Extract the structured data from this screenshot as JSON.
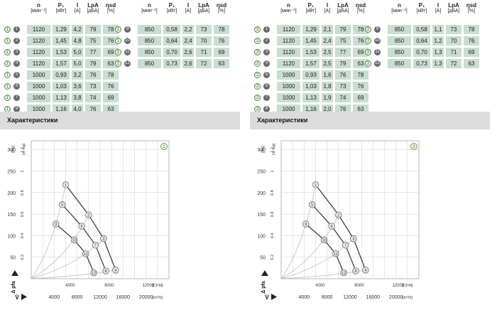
{
  "headers": [
    {
      "top": "n",
      "unit": "[мин⁻¹]"
    },
    {
      "top": "P₁",
      "unit": "[кВт]"
    },
    {
      "top": "I",
      "unit": "[A]"
    },
    {
      "top": "LpA",
      "unit": "[дБА]"
    },
    {
      "top": "ηsd",
      "unit": "[%]"
    }
  ],
  "panels": [
    {
      "section_title": "Характеристики",
      "chart_badge": "1",
      "group_marker": "1",
      "rows_left": [
        {
          "pt": "1",
          "n": "1120",
          "p": "1,29",
          "i": "4,2",
          "lpa": "79",
          "eff": "78"
        },
        {
          "pt": "2",
          "n": "1120",
          "p": "1,45",
          "i": "4,8",
          "lpa": "75",
          "eff": "76"
        },
        {
          "pt": "3",
          "n": "1120",
          "p": "1,53",
          "i": "5,0",
          "lpa": "77",
          "eff": "69"
        },
        {
          "pt": "4",
          "n": "1120",
          "p": "1,57",
          "i": "5,0",
          "lpa": "79",
          "eff": "63"
        },
        {
          "pt": "5",
          "n": "1000",
          "p": "0,93",
          "i": "3,2",
          "lpa": "76",
          "eff": "78"
        },
        {
          "pt": "6",
          "n": "1000",
          "p": "1,03",
          "i": "3,6",
          "lpa": "73",
          "eff": "76"
        },
        {
          "pt": "7",
          "n": "1000",
          "p": "1,13",
          "i": "3,8",
          "lpa": "74",
          "eff": "69"
        },
        {
          "pt": "8",
          "n": "1000",
          "p": "1,16",
          "i": "4,0",
          "lpa": "76",
          "eff": "63"
        }
      ],
      "rows_right": [
        {
          "pt": "9",
          "n": "850",
          "p": "0,58",
          "i": "2,2",
          "lpa": "73",
          "eff": "78"
        },
        {
          "pt": "10",
          "n": "850",
          "p": "0,64",
          "i": "2,4",
          "lpa": "70",
          "eff": "76"
        },
        {
          "pt": "11",
          "n": "850",
          "p": "0,70",
          "i": "2,6",
          "lpa": "71",
          "eff": "69"
        },
        {
          "pt": "12",
          "n": "850",
          "p": "0,73",
          "i": "2,6",
          "lpa": "72",
          "eff": "63"
        }
      ]
    },
    {
      "section_title": "Характеристики",
      "chart_badge": "2",
      "group_marker": "2",
      "rows_left": [
        {
          "pt": "1",
          "n": "1120",
          "p": "1,29",
          "i": "2,1",
          "lpa": "79",
          "eff": "78"
        },
        {
          "pt": "2",
          "n": "1120",
          "p": "1,45",
          "i": "2,4",
          "lpa": "75",
          "eff": "76"
        },
        {
          "pt": "3",
          "n": "1120",
          "p": "1,53",
          "i": "2,5",
          "lpa": "77",
          "eff": "69"
        },
        {
          "pt": "4",
          "n": "1120",
          "p": "1,57",
          "i": "2,5",
          "lpa": "79",
          "eff": "63"
        },
        {
          "pt": "5",
          "n": "1000",
          "p": "0,93",
          "i": "1,6",
          "lpa": "76",
          "eff": "78"
        },
        {
          "pt": "6",
          "n": "1000",
          "p": "1,03",
          "i": "1,8",
          "lpa": "73",
          "eff": "76"
        },
        {
          "pt": "7",
          "n": "1000",
          "p": "1,13",
          "i": "1,9",
          "lpa": "74",
          "eff": "69"
        },
        {
          "pt": "8",
          "n": "1000",
          "p": "1,16",
          "i": "2,0",
          "lpa": "76",
          "eff": "63"
        }
      ],
      "rows_right": [
        {
          "pt": "9",
          "n": "850",
          "p": "0,58",
          "i": "1,1",
          "lpa": "73",
          "eff": "78"
        },
        {
          "pt": "10",
          "n": "850",
          "p": "0,64",
          "i": "1,2",
          "lpa": "70",
          "eff": "76"
        },
        {
          "pt": "11",
          "n": "850",
          "p": "0,70",
          "i": "1,3",
          "lpa": "71",
          "eff": "69"
        },
        {
          "pt": "12",
          "n": "850",
          "p": "0,73",
          "i": "1,3",
          "lpa": "72",
          "eff": "63"
        }
      ]
    }
  ],
  "chart_data": {
    "type": "line",
    "xlabel": "V̇",
    "ylabel": "Δ pfa",
    "x_unit_m3h": "[m³/h]",
    "x_unit_cfm": "[CFM]",
    "y_unit_pa": "[Pa]",
    "y_unit_inwg": "[in. wg]",
    "x_ticks_m3h": [
      4000,
      8000,
      12000,
      16000,
      20000
    ],
    "x_ticks_cfm": [
      4000,
      8000,
      12000
    ],
    "y_ticks_pa": [
      50,
      100,
      150,
      200,
      250,
      300
    ],
    "y_ticks_inwg": [
      0.2,
      0.4,
      0.6,
      0.8,
      1.0,
      1.2
    ],
    "xlim": [
      0,
      24000
    ],
    "ylim": [
      0,
      320
    ],
    "series": [
      {
        "points": [
          {
            "id": "1",
            "x": 6000,
            "y": 218
          },
          {
            "id": "2",
            "x": 10000,
            "y": 148
          },
          {
            "id": "3",
            "x": 12600,
            "y": 93
          },
          {
            "id": "4",
            "x": 14700,
            "y": 20
          }
        ]
      },
      {
        "points": [
          {
            "id": "5",
            "x": 5400,
            "y": 172
          },
          {
            "id": "6",
            "x": 8800,
            "y": 122
          },
          {
            "id": "7",
            "x": 11200,
            "y": 78
          },
          {
            "id": "8",
            "x": 13000,
            "y": 18
          }
        ]
      },
      {
        "points": [
          {
            "id": "9",
            "x": 4300,
            "y": 127
          },
          {
            "id": "10",
            "x": 7500,
            "y": 90
          },
          {
            "id": "11",
            "x": 9500,
            "y": 58
          },
          {
            "id": "12",
            "x": 10900,
            "y": 14
          }
        ]
      }
    ],
    "system_curves": [
      {
        "points": [
          {
            "x": 0,
            "y": 0
          },
          {
            "x": 6000,
            "y": 218
          }
        ]
      },
      {
        "points": [
          {
            "x": 0,
            "y": 0
          },
          {
            "x": 10000,
            "y": 148
          }
        ]
      },
      {
        "points": [
          {
            "x": 0,
            "y": 0
          },
          {
            "x": 12600,
            "y": 93
          }
        ]
      },
      {
        "points": [
          {
            "x": 0,
            "y": 0
          },
          {
            "x": 14700,
            "y": 20
          }
        ]
      }
    ],
    "grid": true
  },
  "colors": {
    "cell_bg": "#c9ddd1",
    "section_bg": "#dcdcdc",
    "curve": "#333333",
    "system_curve": "#bdbdbd",
    "marker_fill": "#e9e9e9",
    "marker_stroke": "#666666",
    "badge_green": "#4a8a3c"
  }
}
